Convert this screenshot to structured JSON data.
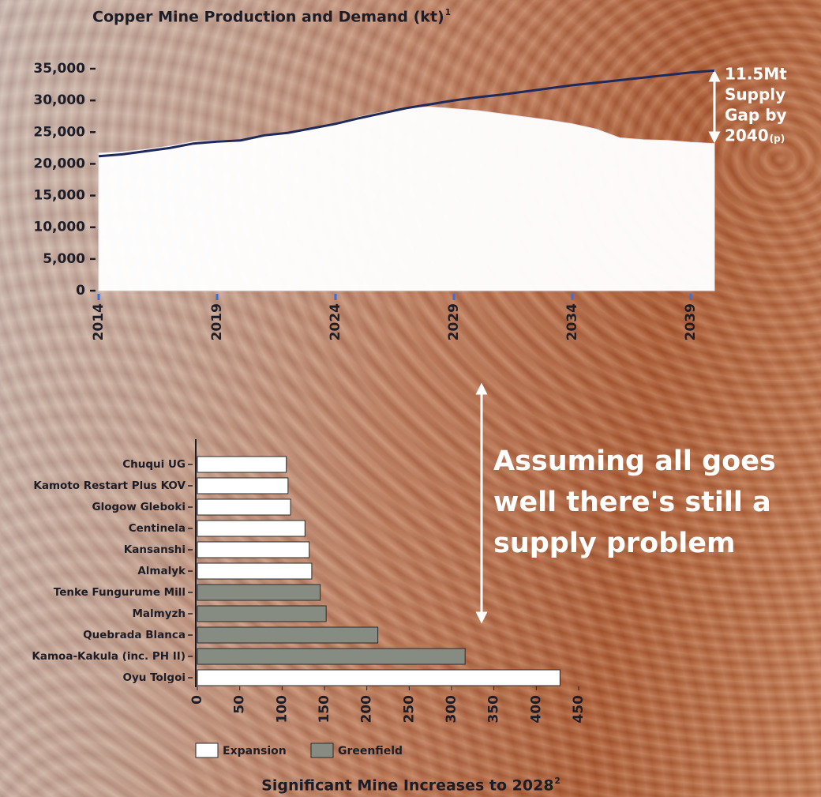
{
  "chart_data": [
    {
      "type": "line",
      "title": "Copper Mine Production and Demand (kt)",
      "title_footnote": "1",
      "x": [
        2014,
        2015,
        2016,
        2017,
        2018,
        2019,
        2020,
        2021,
        2022,
        2023,
        2024,
        2025,
        2026,
        2027,
        2028,
        2029,
        2030,
        2031,
        2032,
        2033,
        2034,
        2035,
        2036,
        2037,
        2038,
        2039,
        2040
      ],
      "series": [
        {
          "style": "area",
          "color": "#ffffff",
          "values": [
            21700,
            21900,
            22300,
            22800,
            23500,
            23700,
            23800,
            24600,
            25000,
            25700,
            26400,
            27400,
            28200,
            28800,
            29000,
            28700,
            28400,
            27900,
            27400,
            26900,
            26300,
            25500,
            24100,
            23800,
            23700,
            23400,
            23200
          ]
        },
        {
          "style": "line",
          "color": "#1f2a5a",
          "values": [
            21200,
            21500,
            22000,
            22500,
            23200,
            23500,
            23700,
            24500,
            24900,
            25600,
            26300,
            27200,
            28000,
            28800,
            29400,
            30000,
            30500,
            30900,
            31400,
            31900,
            32400,
            32800,
            33200,
            33600,
            34000,
            34400,
            34700
          ]
        }
      ],
      "xlim": [
        2014,
        2040
      ],
      "xticks": [
        2014,
        2019,
        2024,
        2029,
        2034,
        2039
      ],
      "ylim": [
        0,
        35000
      ],
      "yticks": [
        0,
        {
          "value": 5000,
          "label": "5,000"
        },
        {
          "value": 10000,
          "label": "10,000"
        },
        {
          "value": 15000,
          "label": "15,000"
        },
        {
          "value": 20000,
          "label": "20,000"
        },
        {
          "value": 25000,
          "label": "25,000"
        },
        {
          "value": 30000,
          "label": "30,000"
        },
        {
          "value": 35000,
          "label": "35,000"
        }
      ],
      "annotation": {
        "lines": [
          "11.5Mt",
          "Supply",
          "Gap by",
          "2040"
        ],
        "suffix": "(p)"
      }
    },
    {
      "type": "hbar",
      "title": "Significant Mine Increases to 2028",
      "title_footnote": "2",
      "categories": [
        "Chuqui UG",
        "Kamoto Restart Plus KOV",
        "Glogow Gleboki",
        "Centinela",
        "Kansanshi",
        "Almalyk",
        "Tenke Fungurume Mill",
        "Malmyzh",
        "Quebrada Blanca",
        "Kamoa-Kakula (inc. PH II)",
        "Oyu Tolgoi"
      ],
      "series": [
        {
          "name": "Expansion",
          "color": "#ffffff",
          "values": [
            105,
            107,
            110,
            127,
            132,
            135,
            null,
            null,
            null,
            null,
            428
          ]
        },
        {
          "name": "Greenfield",
          "color": "#878c83",
          "values": [
            null,
            null,
            null,
            null,
            null,
            null,
            145,
            152,
            213,
            316,
            null
          ]
        }
      ],
      "xlim": [
        0,
        450
      ],
      "xticks": [
        0,
        50,
        100,
        150,
        200,
        250,
        300,
        350,
        400,
        450
      ]
    }
  ],
  "callout": {
    "lines": [
      "Assuming all goes",
      "well there's still a",
      "supply problem"
    ]
  }
}
